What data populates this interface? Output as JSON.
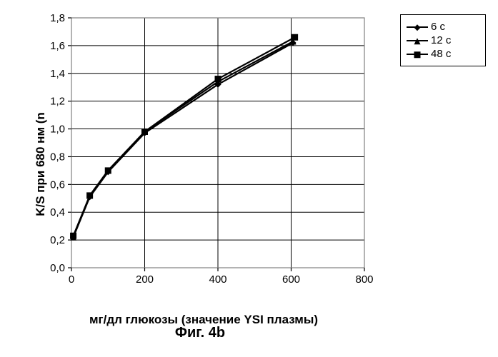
{
  "caption": "Фиг. 4b",
  "chart": {
    "type": "line",
    "xlabel": "мг/дл глюкозы (значение YSI плазмы)",
    "ylabel": "K/S при 680 нм (n",
    "xlim": [
      0,
      800
    ],
    "ylim": [
      0.0,
      1.8
    ],
    "xticks": [
      0,
      200,
      400,
      600,
      800
    ],
    "yticks": [
      0.0,
      0.2,
      0.4,
      0.6,
      0.8,
      1.0,
      1.2,
      1.4,
      1.6,
      1.8
    ],
    "ytick_labels": [
      "0,0",
      "0,2",
      "0,4",
      "0,6",
      "0,8",
      "1,0",
      "1,2",
      "1,4",
      "1,6",
      "1,8"
    ],
    "xtick_labels": [
      "0",
      "200",
      "400",
      "600",
      "800"
    ],
    "background_color": "#ffffff",
    "plot_bg": "#ffffff",
    "grid_color": "#000000",
    "grid_width": 1,
    "frame_color": "#808080",
    "frame_width": 1.2,
    "tick_len": 5,
    "label_fontsize": 17,
    "tick_fontsize": 15,
    "line_width": 2.2,
    "marker_size": 9,
    "series": [
      {
        "name": "6 с",
        "color": "#000000",
        "marker": "diamond",
        "x": [
          5,
          50,
          100,
          200,
          400,
          605
        ],
        "y": [
          0.22,
          0.51,
          0.69,
          0.97,
          1.32,
          1.62
        ]
      },
      {
        "name": "12 с",
        "color": "#000000",
        "marker": "triangle",
        "x": [
          5,
          50,
          100,
          200,
          400,
          605
        ],
        "y": [
          0.22,
          0.52,
          0.7,
          0.98,
          1.34,
          1.63
        ]
      },
      {
        "name": "48 с",
        "color": "#000000",
        "marker": "square",
        "x": [
          5,
          50,
          100,
          200,
          400,
          610
        ],
        "y": [
          0.23,
          0.52,
          0.7,
          0.98,
          1.36,
          1.66
        ]
      }
    ]
  }
}
